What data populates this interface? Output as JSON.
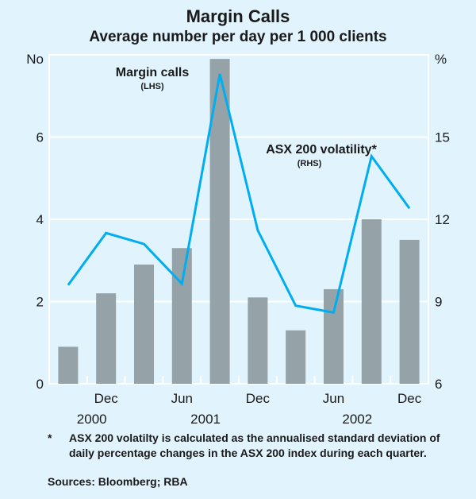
{
  "chart_data": {
    "type": "bar",
    "title": "Margin Calls",
    "subtitle": "Average number per day per 1 000 clients",
    "left_axis": {
      "unit_label": "No",
      "ylim": [
        0,
        8
      ],
      "ticks": [
        0,
        2,
        4,
        6
      ]
    },
    "right_axis": {
      "unit_label": "%",
      "ylim": [
        6,
        18
      ],
      "ticks": [
        6,
        9,
        12,
        15
      ]
    },
    "grid": true,
    "categories": [
      "Sep 2000",
      "Dec 2000",
      "Mar 2001",
      "Jun 2001",
      "Sep 2001",
      "Dec 2001",
      "Mar 2002",
      "Jun 2002",
      "Sep 2002",
      "Dec 2002"
    ],
    "x_tick_labels": [
      {
        "label": "Dec",
        "index": 1
      },
      {
        "label": "Jun",
        "index": 3
      },
      {
        "label": "Dec",
        "index": 5
      },
      {
        "label": "Jun",
        "index": 7
      },
      {
        "label": "Dec",
        "index": 9
      }
    ],
    "year_labels": [
      {
        "label": "2000",
        "index": 1
      },
      {
        "label": "2001",
        "index": 4
      },
      {
        "label": "2002",
        "index": 8
      }
    ],
    "series": [
      {
        "name": "Margin calls",
        "axis": "LHS",
        "axis_label": "(LHS)",
        "type": "bar",
        "color": "#95a3a9",
        "values": [
          0.9,
          2.2,
          2.9,
          3.3,
          7.9,
          2.1,
          1.3,
          2.3,
          4.0,
          3.5
        ]
      },
      {
        "name": "ASX 200 volatility*",
        "axis": "RHS",
        "axis_label": "(RHS)",
        "type": "line",
        "color": "#00aeef",
        "values": [
          9.6,
          11.5,
          11.1,
          9.65,
          17.3,
          11.6,
          8.85,
          8.6,
          14.3,
          12.4
        ]
      }
    ]
  },
  "footnote": {
    "marker": "*",
    "text": "ASX 200 volatilty is calculated as the annualised standard deviation of daily percentage changes in the ASX 200 index during each quarter."
  },
  "sources": "Sources: Bloomberg; RBA"
}
